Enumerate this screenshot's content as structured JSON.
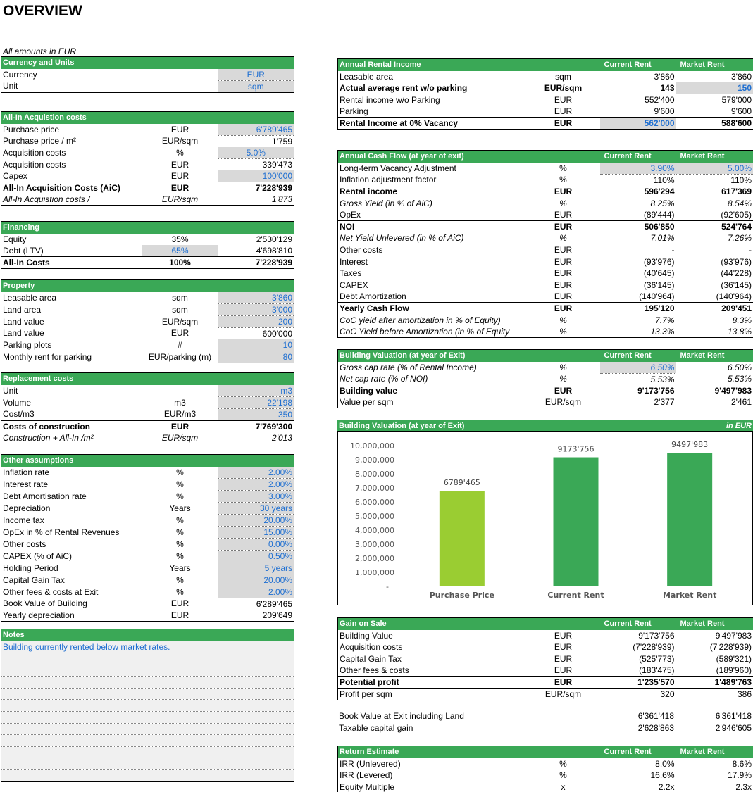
{
  "title": "OVERVIEW",
  "subtitle": "All amounts in EUR",
  "currency": {
    "header": "Currency and Units",
    "rows": [
      [
        "Currency",
        "",
        "EUR"
      ],
      [
        "Unit",
        "",
        "sqm"
      ]
    ]
  },
  "acq": {
    "header": "All-In Acquistion costs",
    "rows": [
      [
        "Purchase price",
        "EUR",
        "6'789'465"
      ],
      [
        "Purchase price / m²",
        "EUR/sqm",
        "1'759"
      ],
      [
        "Acquisition costs",
        "%",
        "5.0%"
      ],
      [
        "Acquisition costs",
        "EUR",
        "339'473"
      ],
      [
        "Capex",
        "EUR",
        "100'000"
      ],
      [
        "All-In Acquisition Costs (AiC)",
        "EUR",
        "7'228'939"
      ],
      [
        "All-In Acquistion costs  /",
        "EUR/sqm",
        "1'873"
      ]
    ]
  },
  "fin": {
    "header": "Financing",
    "rows": [
      [
        "Equity",
        "35%",
        "2'530'129"
      ],
      [
        "Debt (LTV)",
        "65%",
        "4'698'810"
      ],
      [
        "All-In Costs",
        "100%",
        "7'228'939"
      ]
    ]
  },
  "prop": {
    "header": "Property",
    "rows": [
      [
        "Leasable area",
        "sqm",
        "3'860"
      ],
      [
        "Land area",
        "sqm",
        "3'000"
      ],
      [
        "Land value",
        "EUR/sqm",
        "200"
      ],
      [
        "Land value",
        "EUR",
        "600'000"
      ],
      [
        "Parking plots",
        "#",
        "10"
      ],
      [
        "Monthly rent for parking",
        "EUR/parking (m)",
        "80"
      ]
    ]
  },
  "repl": {
    "header": "Replacement costs",
    "rows": [
      [
        "Unit",
        "",
        "m3"
      ],
      [
        "Volume",
        "m3",
        "22'198"
      ],
      [
        "Cost/m3",
        "EUR/m3",
        "350"
      ],
      [
        "Costs of construction",
        "EUR",
        "7'769'300"
      ],
      [
        "Construction + All-In  /m²",
        "EUR/sqm",
        "2'013"
      ]
    ]
  },
  "other": {
    "header": "Other assumptions",
    "rows": [
      [
        "Inflation rate",
        "%",
        "2.00%"
      ],
      [
        "Interest rate",
        "%",
        "2.00%"
      ],
      [
        "Debt Amortisation rate",
        "%",
        "3.00%"
      ],
      [
        "Depreciation",
        "Years",
        "30 years"
      ],
      [
        "Income tax",
        "%",
        "20.00%"
      ],
      [
        "OpEx in % of Rental Revenues",
        "%",
        "15.00%"
      ],
      [
        "Other costs",
        "%",
        "0.00%"
      ],
      [
        "CAPEX (% of AiC)",
        "%",
        "0.50%"
      ],
      [
        "Holding Period",
        "Years",
        "5 years"
      ],
      [
        "Capital Gain Tax",
        "%",
        "20.00%"
      ],
      [
        "Other fees & costs at Exit",
        "%",
        "2.00%"
      ],
      [
        "Book Value of Building",
        "EUR",
        "6'289'465"
      ],
      [
        "Yearly depreciation",
        "EUR",
        "209'649"
      ]
    ]
  },
  "notes": {
    "header": "Notes",
    "line1": "Building currently rented below market rates."
  },
  "cols": {
    "current": "Current Rent",
    "market": "Market Rent",
    "in_eur": "in EUR"
  },
  "rental": {
    "header": "Annual Rental Income",
    "rows": [
      [
        "Leasable area",
        "sqm",
        "3'860",
        "3'860"
      ],
      [
        "Actual average rent w/o parking",
        "EUR/sqm",
        "143",
        "150"
      ],
      [
        "Rental income w/o Parking",
        "EUR",
        "552'400",
        "579'000"
      ],
      [
        "Parking",
        "EUR",
        "9'600",
        "9'600"
      ],
      [
        "Rental Income at 0% Vacancy",
        "EUR",
        "562'000",
        "588'600"
      ]
    ]
  },
  "cashflow": {
    "header": "Annual Cash Flow (at year of exit)",
    "rows": [
      [
        "Long-term Vacancy Adjustment",
        "%",
        "3.90%",
        "5.00%"
      ],
      [
        "Inflation adjustment factor",
        "%",
        "110%",
        "110%"
      ],
      [
        "Rental income",
        "EUR",
        "596'294",
        "617'369"
      ],
      [
        "Gross Yield (in % of AiC)",
        "%",
        "8.25%",
        "8.54%"
      ],
      [
        "OpEx",
        "EUR",
        "(89'444)",
        "(92'605)"
      ],
      [
        "NOI",
        "EUR",
        "506'850",
        "524'764"
      ],
      [
        "Net Yield Unlevered (in % of AiC)",
        "%",
        "7.01%",
        "7.26%"
      ],
      [
        "Other costs",
        "EUR",
        "-",
        "-"
      ],
      [
        "Interest",
        "EUR",
        "(93'976)",
        "(93'976)"
      ],
      [
        "Taxes",
        "EUR",
        "(40'645)",
        "(44'228)"
      ],
      [
        "CAPEX",
        "EUR",
        "(36'145)",
        "(36'145)"
      ],
      [
        "Debt Amortization",
        "EUR",
        "(140'964)",
        "(140'964)"
      ],
      [
        "Yearly Cash Flow",
        "EUR",
        "195'120",
        "209'451"
      ],
      [
        "CoC yield after amortization in % of Equity)",
        "%",
        "7.7%",
        "8.3%"
      ],
      [
        "CoC Yield before Amortization (in % of Equity",
        "%",
        "13.3%",
        "13.8%"
      ]
    ]
  },
  "valuation": {
    "header": "Building Valuation (at year of Exit)",
    "rows": [
      [
        "Gross cap rate (% of Rental Income)",
        "%",
        "6.50%",
        "6.50%"
      ],
      [
        "Net cap rate (% of NOI)",
        "%",
        "5.53%",
        "5.53%"
      ],
      [
        "Building value",
        "EUR",
        "9'173'756",
        "9'497'983"
      ],
      [
        "Value per sqm",
        "EUR/sqm",
        "2'377",
        "2'461"
      ]
    ]
  },
  "chart_header": "Building Valuation (at year of Exit)",
  "chart_data": {
    "type": "bar",
    "categories": [
      "Purchase Price",
      "Current Rent",
      "Market Rent"
    ],
    "values": [
      6789465,
      9173756,
      9497983
    ],
    "data_labels": [
      "6789'465",
      "9173'756",
      "9497'983"
    ],
    "colors": [
      "#9acd32",
      "#3aa856",
      "#3aa856"
    ],
    "ylim": [
      0,
      10000000
    ],
    "yticks": [
      "-",
      "1,000,000",
      "2,000,000",
      "3,000,000",
      "4,000,000",
      "5,000,000",
      "6,000,000",
      "7,000,000",
      "8,000,000",
      "9,000,000",
      "10,000,000"
    ],
    "title": "",
    "xlabel": "",
    "ylabel": "",
    "grid": false
  },
  "gain": {
    "header": "Gain on Sale",
    "rows": [
      [
        "Building Value",
        "EUR",
        "9'173'756",
        "9'497'983"
      ],
      [
        "Acquisition costs",
        "EUR",
        "(7'228'939)",
        "(7'228'939)"
      ],
      [
        "Capital Gain Tax",
        "EUR",
        "(525'773)",
        "(589'321)"
      ],
      [
        "Other fees & costs",
        "EUR",
        "(183'475)",
        "(189'960)"
      ],
      [
        "Potential profit",
        "EUR",
        "1'235'570",
        "1'489'763"
      ],
      [
        "Profit per sqm",
        "EUR/sqm",
        "320",
        "386"
      ]
    ],
    "book": [
      "Book Value at Exit including Land",
      "6'361'418",
      "6'361'418"
    ],
    "taxable": [
      "Taxable capital gain",
      "2'628'863",
      "2'946'605"
    ]
  },
  "returns": {
    "header": "Return Estimate",
    "rows": [
      [
        "IRR (Unlevered)",
        "%",
        "8.0%",
        "8.6%"
      ],
      [
        "IRR (Levered)",
        "%",
        "16.6%",
        "17.9%"
      ],
      [
        "Equity Multiple",
        "x",
        "2.2x",
        "2.3x"
      ]
    ]
  }
}
